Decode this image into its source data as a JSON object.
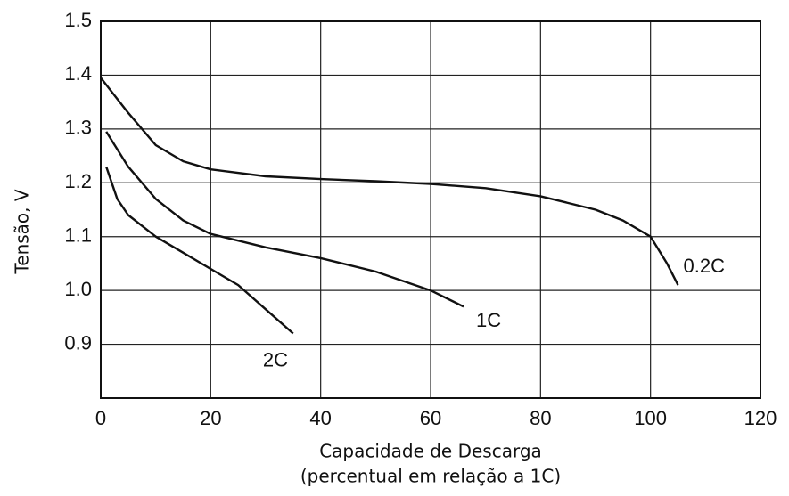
{
  "chart_data": {
    "type": "line",
    "ylabel": "Tensão, V",
    "xlabel": [
      "Capacidade de Descarga",
      "(percentual em relação a 1C)"
    ],
    "xlim": [
      0,
      120
    ],
    "xticks": [
      0,
      20,
      40,
      60,
      80,
      100,
      120
    ],
    "ylim": [
      0.8,
      1.5
    ],
    "yticks": [
      0.9,
      {
        "value": 1,
        "label": "1.0"
      },
      1.1,
      1.2,
      1.3,
      1.4,
      1.5
    ],
    "grid": true,
    "series": [
      {
        "name": "0.2C",
        "color": "#111111",
        "x": [
          0,
          5,
          10,
          15,
          20,
          30,
          40,
          50,
          60,
          70,
          80,
          90,
          95,
          100,
          103,
          105
        ],
        "values": [
          1.395,
          1.33,
          1.27,
          1.24,
          1.225,
          1.212,
          1.207,
          1.203,
          1.198,
          1.19,
          1.175,
          1.15,
          1.13,
          1.1,
          1.05,
          1.01
        ]
      },
      {
        "name": "1C",
        "color": "#111111",
        "x": [
          1,
          5,
          10,
          15,
          20,
          30,
          40,
          50,
          60,
          66
        ],
        "values": [
          1.295,
          1.23,
          1.17,
          1.13,
          1.105,
          1.08,
          1.06,
          1.035,
          1.0,
          0.97
        ]
      },
      {
        "name": "2C",
        "color": "#111111",
        "x": [
          1,
          3,
          5,
          10,
          15,
          20,
          25,
          30,
          35
        ],
        "values": [
          1.23,
          1.17,
          1.14,
          1.1,
          1.07,
          1.04,
          1.01,
          0.965,
          0.92
        ]
      }
    ]
  }
}
